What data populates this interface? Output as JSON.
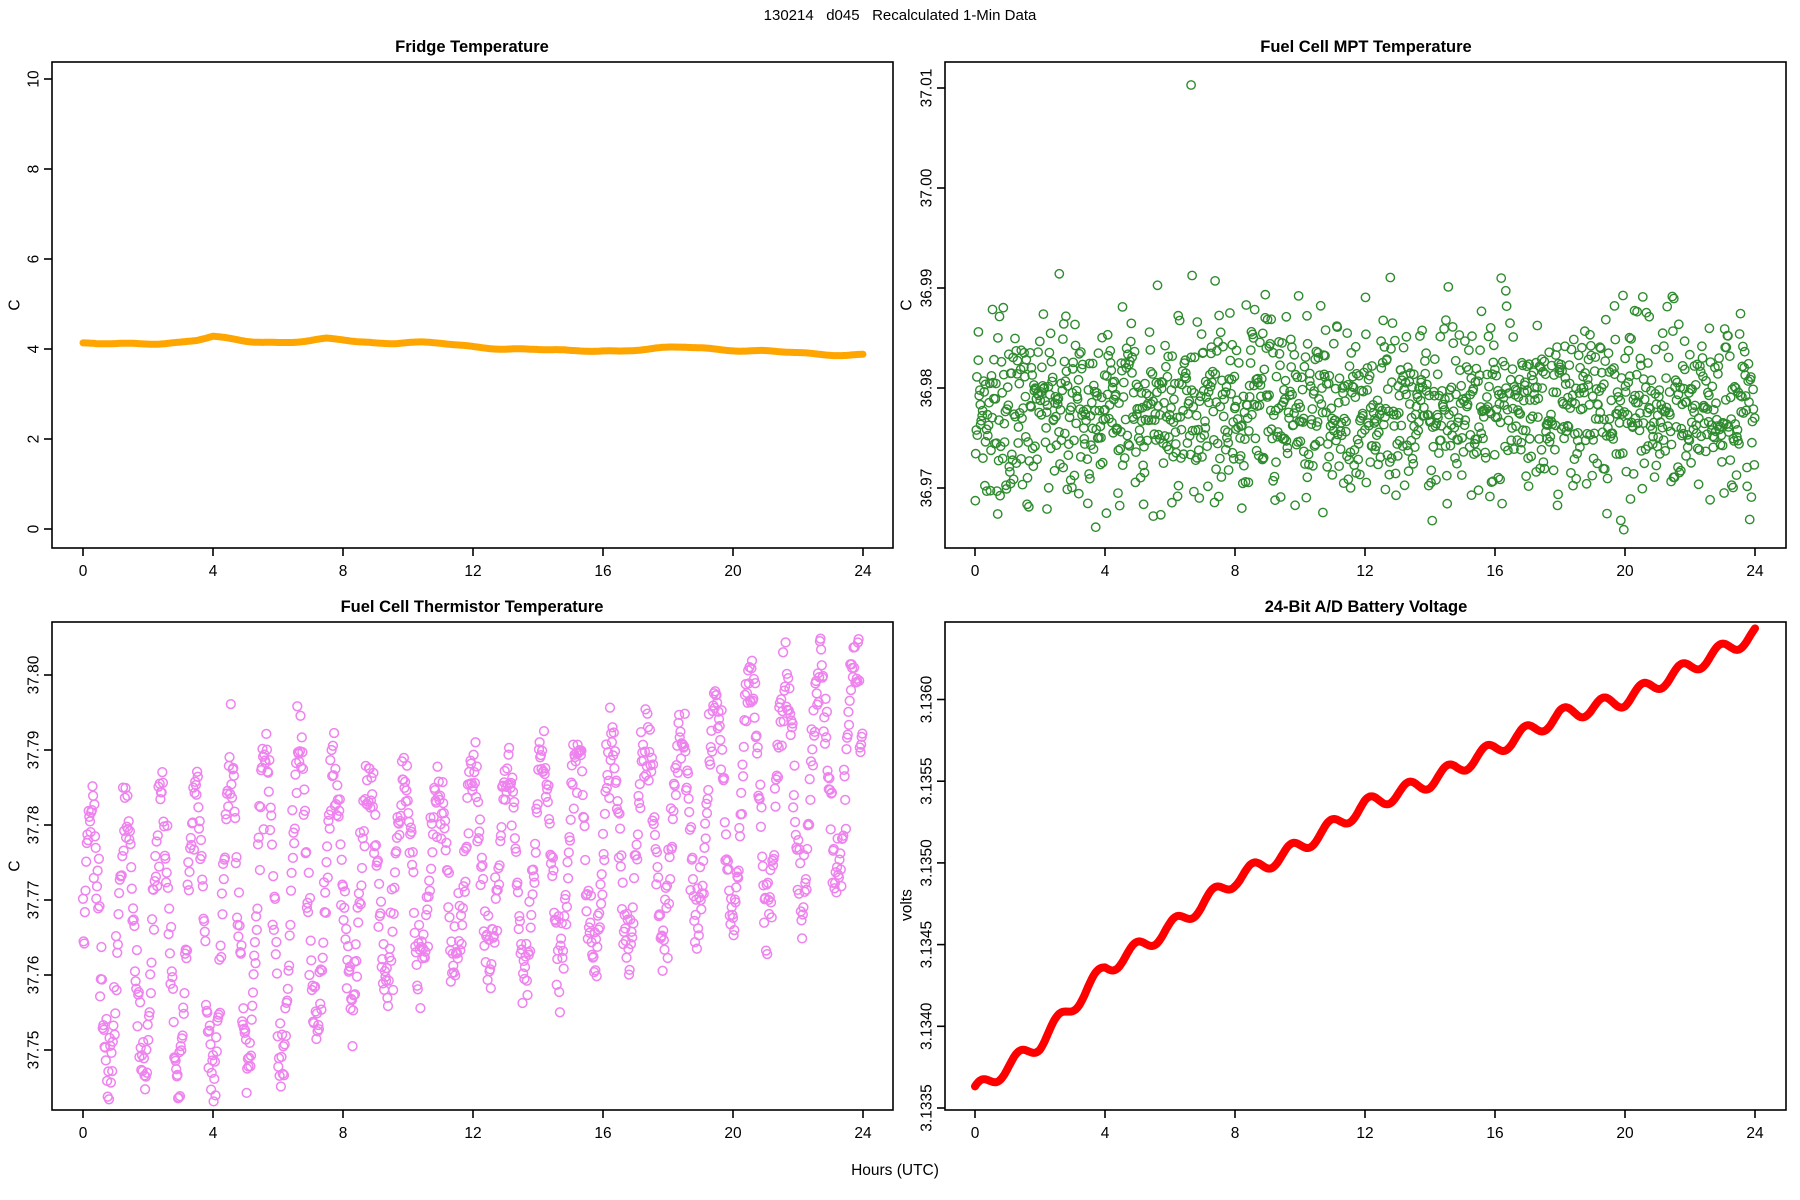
{
  "header": {
    "title": "130214   d045   Recalculated 1-Min Data"
  },
  "footer": {
    "xlabel": "Hours (UTC)"
  },
  "chart_data": [
    {
      "id": "fridge",
      "type": "line",
      "title": "Fridge Temperature",
      "ylabel": "C",
      "xlim": [
        0,
        24
      ],
      "ylim": [
        0,
        10
      ],
      "x_ticks": [
        0,
        4,
        8,
        12,
        16,
        20,
        24
      ],
      "y_ticks": {
        "values": [
          0,
          2,
          4,
          6,
          8,
          10
        ],
        "labels": [
          "0",
          "2",
          "4",
          "6",
          "8",
          "10"
        ]
      },
      "grid": false,
      "color": "#FFA500",
      "series": {
        "kind": "thickline",
        "stroke_px": 7,
        "hours": [
          0,
          0.5,
          1,
          1.5,
          2,
          2.5,
          3,
          3.5,
          4,
          4.5,
          5,
          5.5,
          6,
          6.5,
          7,
          7.5,
          8,
          8.5,
          9,
          9.5,
          10,
          10.5,
          11,
          11.5,
          12,
          12.5,
          13,
          13.5,
          14,
          14.5,
          15,
          15.5,
          16,
          16.5,
          17,
          17.5,
          18,
          18.5,
          19,
          19.5,
          20,
          20.5,
          21,
          21.5,
          22,
          22.5,
          23,
          23.5,
          24
        ],
        "values": [
          4.12,
          4.11,
          4.11,
          4.12,
          4.13,
          4.13,
          4.15,
          4.19,
          4.27,
          4.22,
          4.18,
          4.16,
          4.15,
          4.16,
          4.18,
          4.22,
          4.2,
          4.16,
          4.14,
          4.14,
          4.15,
          4.14,
          4.12,
          4.08,
          4.05,
          4.03,
          4.01,
          4.0,
          3.99,
          3.97,
          3.95,
          3.96,
          3.97,
          3.96,
          3.98,
          4.0,
          4.02,
          4.04,
          4.03,
          4.0,
          3.98,
          3.96,
          3.95,
          3.93,
          3.91,
          3.89,
          3.88,
          3.87,
          3.88
        ],
        "wobble": [
          [
            0.015,
            1.8,
            0.5
          ],
          [
            0.01,
            4.2,
            2.0
          ]
        ]
      }
    },
    {
      "id": "mpt",
      "type": "scatter",
      "title": "Fuel Cell MPT Temperature",
      "ylabel": "C",
      "xlim": [
        0,
        24
      ],
      "ylim": [
        36.964,
        37.012
      ],
      "x_ticks": [
        0,
        4,
        8,
        12,
        16,
        20,
        24
      ],
      "y_ticks": {
        "values": [
          36.97,
          36.98,
          36.99,
          37.0,
          37.01
        ],
        "labels": [
          "36.97",
          "36.98",
          "36.99",
          "37.00",
          "37.01"
        ]
      },
      "grid": false,
      "color": "#2E8B2E",
      "series": {
        "kind": "noise_scatter",
        "n": 1400,
        "mean": 36.9782,
        "sd": 0.00435,
        "clip": [
          36.9657,
          36.9922
        ],
        "outliers": [
          [
            6.65,
            37.0103
          ]
        ],
        "seed": 20130214,
        "marker_r": 4.2,
        "stroke_px": 1.4
      }
    },
    {
      "id": "thermistor",
      "type": "scatter",
      "title": "Fuel Cell Thermistor Temperature",
      "ylabel": "C",
      "xlim": [
        0,
        24
      ],
      "ylim": [
        37.742,
        37.807
      ],
      "x_ticks": [
        0,
        4,
        8,
        12,
        16,
        20,
        24
      ],
      "y_ticks": {
        "values": [
          37.75,
          37.76,
          37.77,
          37.78,
          37.79,
          37.8
        ],
        "labels": [
          "37.75",
          "37.76",
          "37.77",
          "37.78",
          "37.79",
          "37.80"
        ]
      },
      "grid": false,
      "color": "#EE82EE",
      "series": {
        "kind": "osc_scatter",
        "n": 1230,
        "seed": 45,
        "base_hours": [
          0,
          4,
          8,
          12,
          16,
          20,
          24
        ],
        "base_values": [
          37.764,
          37.766,
          37.772,
          37.774,
          37.776,
          37.7835,
          37.787
        ],
        "amp_hours": [
          0,
          3,
          6,
          9,
          12,
          15,
          18,
          21,
          24
        ],
        "amp_values": [
          0.016,
          0.019,
          0.021,
          0.013,
          0.012,
          0.015,
          0.013,
          0.016,
          0.014
        ],
        "period_min": 64,
        "noise_sd": 0.0028,
        "clip": [
          37.7428,
          37.8055
        ],
        "marker_r": 4.4,
        "stroke_px": 1.5
      }
    },
    {
      "id": "battery",
      "type": "line",
      "title": "24-Bit A/D Battery Voltage",
      "ylabel": "volts",
      "xlim": [
        0,
        24
      ],
      "ylim": [
        3.1335,
        3.1365
      ],
      "x_ticks": [
        0,
        4,
        8,
        12,
        16,
        20,
        24
      ],
      "y_ticks": {
        "values": [
          3.1335,
          3.134,
          3.1345,
          3.135,
          3.1355,
          3.136
        ],
        "labels": [
          "3.1335",
          "3.1340",
          "3.1345",
          "3.1350",
          "3.1355",
          "3.1360"
        ]
      },
      "grid": false,
      "color": "#FF0000",
      "series": {
        "kind": "thickline",
        "stroke_px": 8,
        "hours": [
          0,
          2,
          4,
          6,
          8,
          10,
          12,
          14,
          16,
          18,
          20,
          22,
          24
        ],
        "values": [
          3.1336,
          3.1339,
          3.13435,
          3.1346,
          3.1349,
          3.1351,
          3.13535,
          3.1355,
          3.1357,
          3.1359,
          3.136,
          3.1362,
          3.1364
        ],
        "wobble": [
          [
            4.5e-05,
            5.24,
            0.8
          ]
        ]
      }
    }
  ]
}
